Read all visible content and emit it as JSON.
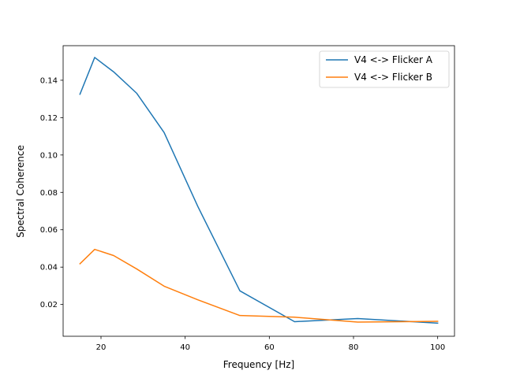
{
  "chart_data": {
    "type": "line",
    "title": "",
    "xlabel": "Frequency [Hz]",
    "ylabel": "Spectral Coherence",
    "xlim": [
      11,
      104
    ],
    "ylim": [
      0.003,
      0.1585
    ],
    "xticks": [
      20,
      40,
      60,
      80,
      100
    ],
    "yticks": [
      0.02,
      0.04,
      0.06,
      0.08,
      0.1,
      0.12,
      0.14
    ],
    "xtick_labels": [
      "20",
      "40",
      "60",
      "80",
      "100"
    ],
    "ytick_labels": [
      "0.02",
      "0.04",
      "0.06",
      "0.08",
      "0.10",
      "0.12",
      "0.14"
    ],
    "grid": false,
    "legend_position": "upper-right",
    "series": [
      {
        "name": "V4 <-> Flicker A",
        "color": "#1f77b4",
        "x": [
          15,
          18.5,
          23,
          28.5,
          35,
          43,
          53,
          66,
          81,
          100
        ],
        "y": [
          0.1325,
          0.1522,
          0.1445,
          0.133,
          0.112,
          0.0725,
          0.0273,
          0.0108,
          0.0125,
          0.01
        ]
      },
      {
        "name": "V4 <-> Flicker B",
        "color": "#ff7f0e",
        "x": [
          15,
          18.5,
          23,
          28.5,
          35,
          43,
          53,
          66,
          81,
          100
        ],
        "y": [
          0.0418,
          0.0495,
          0.0462,
          0.039,
          0.0298,
          0.0225,
          0.0141,
          0.0132,
          0.0106,
          0.011
        ]
      }
    ]
  }
}
